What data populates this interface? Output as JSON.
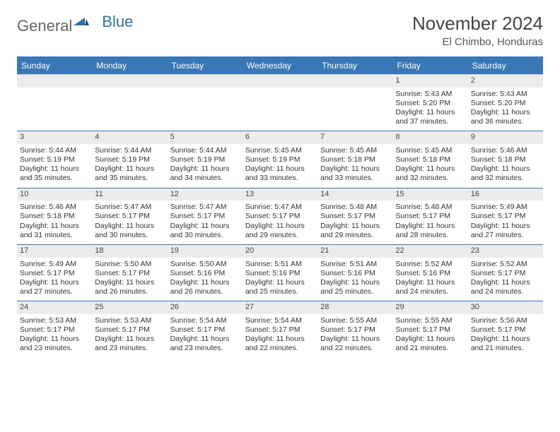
{
  "logo": {
    "text1": "General",
    "text2": "Blue"
  },
  "title": {
    "month": "November 2024",
    "location": "El Chimbo, Honduras"
  },
  "colors": {
    "header_bg": "#3a77b5",
    "header_text": "#ffffff",
    "daynum_bg": "#ececec",
    "rule": "#3a77b5",
    "body_text": "#333333",
    "page_bg": "#ffffff"
  },
  "typography": {
    "title_fontsize": 26,
    "location_fontsize": 15,
    "dow_fontsize": 12,
    "cell_fontsize": 10.5
  },
  "dow": [
    "Sunday",
    "Monday",
    "Tuesday",
    "Wednesday",
    "Thursday",
    "Friday",
    "Saturday"
  ],
  "weeks": [
    [
      {
        "n": "",
        "empty": true
      },
      {
        "n": "",
        "empty": true
      },
      {
        "n": "",
        "empty": true
      },
      {
        "n": "",
        "empty": true
      },
      {
        "n": "",
        "empty": true
      },
      {
        "n": "1",
        "sr": "Sunrise: 5:43 AM",
        "ss": "Sunset: 5:20 PM",
        "dl": "Daylight: 11 hours and 37 minutes."
      },
      {
        "n": "2",
        "sr": "Sunrise: 5:43 AM",
        "ss": "Sunset: 5:20 PM",
        "dl": "Daylight: 11 hours and 36 minutes."
      }
    ],
    [
      {
        "n": "3",
        "sr": "Sunrise: 5:44 AM",
        "ss": "Sunset: 5:19 PM",
        "dl": "Daylight: 11 hours and 35 minutes."
      },
      {
        "n": "4",
        "sr": "Sunrise: 5:44 AM",
        "ss": "Sunset: 5:19 PM",
        "dl": "Daylight: 11 hours and 35 minutes."
      },
      {
        "n": "5",
        "sr": "Sunrise: 5:44 AM",
        "ss": "Sunset: 5:19 PM",
        "dl": "Daylight: 11 hours and 34 minutes."
      },
      {
        "n": "6",
        "sr": "Sunrise: 5:45 AM",
        "ss": "Sunset: 5:19 PM",
        "dl": "Daylight: 11 hours and 33 minutes."
      },
      {
        "n": "7",
        "sr": "Sunrise: 5:45 AM",
        "ss": "Sunset: 5:18 PM",
        "dl": "Daylight: 11 hours and 33 minutes."
      },
      {
        "n": "8",
        "sr": "Sunrise: 5:45 AM",
        "ss": "Sunset: 5:18 PM",
        "dl": "Daylight: 11 hours and 32 minutes."
      },
      {
        "n": "9",
        "sr": "Sunrise: 5:46 AM",
        "ss": "Sunset: 5:18 PM",
        "dl": "Daylight: 11 hours and 32 minutes."
      }
    ],
    [
      {
        "n": "10",
        "sr": "Sunrise: 5:46 AM",
        "ss": "Sunset: 5:18 PM",
        "dl": "Daylight: 11 hours and 31 minutes."
      },
      {
        "n": "11",
        "sr": "Sunrise: 5:47 AM",
        "ss": "Sunset: 5:17 PM",
        "dl": "Daylight: 11 hours and 30 minutes."
      },
      {
        "n": "12",
        "sr": "Sunrise: 5:47 AM",
        "ss": "Sunset: 5:17 PM",
        "dl": "Daylight: 11 hours and 30 minutes."
      },
      {
        "n": "13",
        "sr": "Sunrise: 5:47 AM",
        "ss": "Sunset: 5:17 PM",
        "dl": "Daylight: 11 hours and 29 minutes."
      },
      {
        "n": "14",
        "sr": "Sunrise: 5:48 AM",
        "ss": "Sunset: 5:17 PM",
        "dl": "Daylight: 11 hours and 29 minutes."
      },
      {
        "n": "15",
        "sr": "Sunrise: 5:48 AM",
        "ss": "Sunset: 5:17 PM",
        "dl": "Daylight: 11 hours and 28 minutes."
      },
      {
        "n": "16",
        "sr": "Sunrise: 5:49 AM",
        "ss": "Sunset: 5:17 PM",
        "dl": "Daylight: 11 hours and 27 minutes."
      }
    ],
    [
      {
        "n": "17",
        "sr": "Sunrise: 5:49 AM",
        "ss": "Sunset: 5:17 PM",
        "dl": "Daylight: 11 hours and 27 minutes."
      },
      {
        "n": "18",
        "sr": "Sunrise: 5:50 AM",
        "ss": "Sunset: 5:17 PM",
        "dl": "Daylight: 11 hours and 26 minutes."
      },
      {
        "n": "19",
        "sr": "Sunrise: 5:50 AM",
        "ss": "Sunset: 5:16 PM",
        "dl": "Daylight: 11 hours and 26 minutes."
      },
      {
        "n": "20",
        "sr": "Sunrise: 5:51 AM",
        "ss": "Sunset: 5:16 PM",
        "dl": "Daylight: 11 hours and 25 minutes."
      },
      {
        "n": "21",
        "sr": "Sunrise: 5:51 AM",
        "ss": "Sunset: 5:16 PM",
        "dl": "Daylight: 11 hours and 25 minutes."
      },
      {
        "n": "22",
        "sr": "Sunrise: 5:52 AM",
        "ss": "Sunset: 5:16 PM",
        "dl": "Daylight: 11 hours and 24 minutes."
      },
      {
        "n": "23",
        "sr": "Sunrise: 5:52 AM",
        "ss": "Sunset: 5:17 PM",
        "dl": "Daylight: 11 hours and 24 minutes."
      }
    ],
    [
      {
        "n": "24",
        "sr": "Sunrise: 5:53 AM",
        "ss": "Sunset: 5:17 PM",
        "dl": "Daylight: 11 hours and 23 minutes."
      },
      {
        "n": "25",
        "sr": "Sunrise: 5:53 AM",
        "ss": "Sunset: 5:17 PM",
        "dl": "Daylight: 11 hours and 23 minutes."
      },
      {
        "n": "26",
        "sr": "Sunrise: 5:54 AM",
        "ss": "Sunset: 5:17 PM",
        "dl": "Daylight: 11 hours and 23 minutes."
      },
      {
        "n": "27",
        "sr": "Sunrise: 5:54 AM",
        "ss": "Sunset: 5:17 PM",
        "dl": "Daylight: 11 hours and 22 minutes."
      },
      {
        "n": "28",
        "sr": "Sunrise: 5:55 AM",
        "ss": "Sunset: 5:17 PM",
        "dl": "Daylight: 11 hours and 22 minutes."
      },
      {
        "n": "29",
        "sr": "Sunrise: 5:55 AM",
        "ss": "Sunset: 5:17 PM",
        "dl": "Daylight: 11 hours and 21 minutes."
      },
      {
        "n": "30",
        "sr": "Sunrise: 5:56 AM",
        "ss": "Sunset: 5:17 PM",
        "dl": "Daylight: 11 hours and 21 minutes."
      }
    ]
  ]
}
